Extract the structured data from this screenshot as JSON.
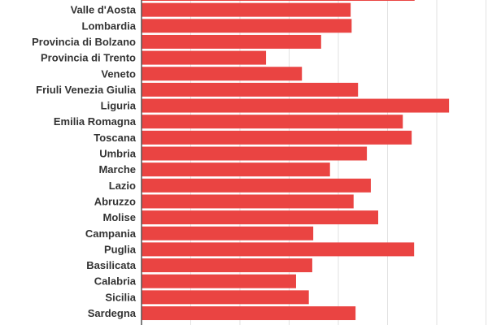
{
  "chart_data": {
    "type": "bar",
    "orientation": "horizontal",
    "title": "",
    "xlabel": "",
    "ylabel": "",
    "grid": true,
    "bar_color": "#ea4442",
    "xlim": [
      0,
      7
    ],
    "categories": [
      "",
      "Valle d'Aosta",
      "Lombardia",
      "Provincia di Bolzano",
      "Provincia di Trento",
      "Veneto",
      "Friuli Venezia Giulia",
      "Liguria",
      "Emilia Romagna",
      "Toscana",
      "Umbria",
      "Marche",
      "Lazio",
      "Abruzzo",
      "Molise",
      "Campania",
      "Puglia",
      "Basilicata",
      "Calabria",
      "Sicilia",
      "Sardegna"
    ],
    "values": [
      5.55,
      4.25,
      4.27,
      3.65,
      2.53,
      3.26,
      4.4,
      6.25,
      5.31,
      5.49,
      4.58,
      3.83,
      4.66,
      4.31,
      4.81,
      3.49,
      5.54,
      3.47,
      3.14,
      3.4,
      4.35
    ]
  }
}
